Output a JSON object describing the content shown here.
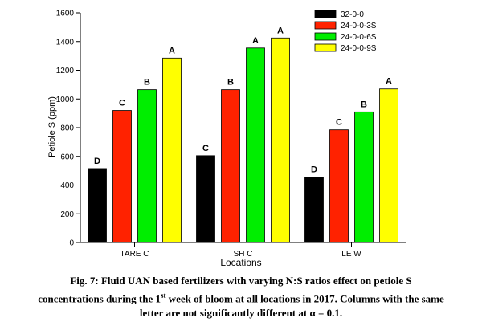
{
  "chart_data": {
    "type": "bar",
    "xlabel": "Locations",
    "ylabel": "Petiole S (ppm)",
    "ylim": [
      0,
      1600
    ],
    "yticks": [
      "0",
      "200",
      "400",
      "600",
      "800",
      "1000",
      "1200",
      "1400",
      "1600"
    ],
    "categories": [
      "TAREC",
      "SHC",
      "LEW"
    ],
    "category_labels": [
      "TARE C",
      "SH C",
      "LE W"
    ],
    "legend_position": "top-right",
    "grid": false,
    "series": [
      {
        "name": "32-0-0",
        "color": "#000000",
        "values": [
          515,
          605,
          455
        ],
        "letters": [
          "D",
          "C",
          "D"
        ]
      },
      {
        "name": "24-0-0-3S",
        "color": "#ff2200",
        "values": [
          920,
          1065,
          785
        ],
        "letters": [
          "C",
          "B",
          "C"
        ]
      },
      {
        "name": "24-0-0-6S",
        "color": "#00ee00",
        "values": [
          1065,
          1355,
          910
        ],
        "letters": [
          "B",
          "A",
          "B"
        ]
      },
      {
        "name": "24-0-0-9S",
        "color": "#ffff00",
        "values": [
          1285,
          1425,
          1070
        ],
        "letters": [
          "A",
          "A",
          "A"
        ]
      }
    ]
  },
  "caption": {
    "line1": "Fig. 7: Fluid UAN based fertilizers with varying N:S ratios effect on petiole S",
    "line2_pre": "concentrations during  the 1",
    "line2_sup": "st",
    "line2_post": " week of bloom  at all locations in 2017. Columns with the same",
    "line3": "letter are not significantly  different  at α = 0.1."
  }
}
